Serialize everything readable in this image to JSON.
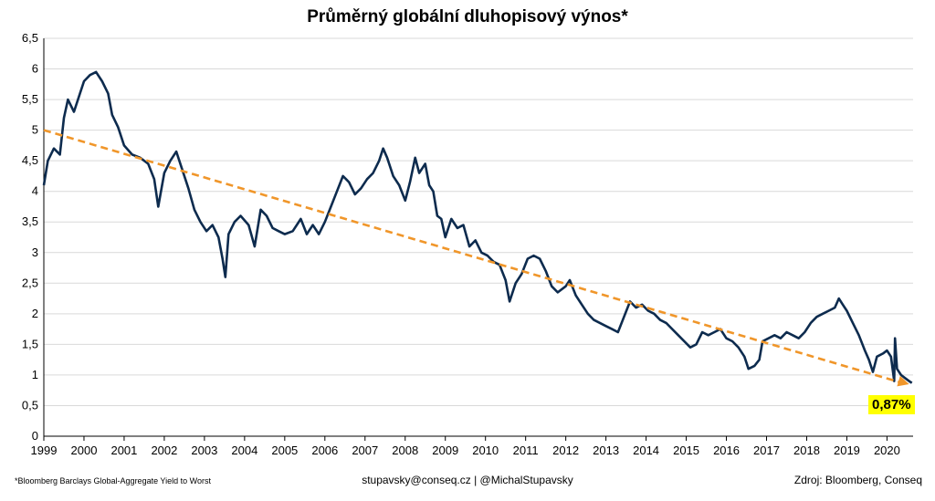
{
  "chart_data": {
    "type": "line",
    "title": "Průměrný globální dluhopisový výnos*",
    "x_ticks": [
      "1999",
      "2000",
      "2001",
      "2002",
      "2003",
      "2004",
      "2005",
      "2006",
      "2007",
      "2008",
      "2009",
      "2010",
      "2011",
      "2012",
      "2013",
      "2014",
      "2015",
      "2016",
      "2017",
      "2018",
      "2019",
      "2020"
    ],
    "y_ticks": [
      "0",
      "0,5",
      "1",
      "1,5",
      "2",
      "2,5",
      "3",
      "3,5",
      "4",
      "4,5",
      "5",
      "5,5",
      "6",
      "6,5"
    ],
    "xlim": [
      1999,
      2020.65
    ],
    "ylim": [
      0,
      6.5
    ],
    "grid": "horizontal",
    "series": [
      {
        "color": "#0d2b4e",
        "points": [
          [
            1999.0,
            4.1
          ],
          [
            1999.1,
            4.5
          ],
          [
            1999.25,
            4.7
          ],
          [
            1999.4,
            4.6
          ],
          [
            1999.5,
            5.2
          ],
          [
            1999.6,
            5.5
          ],
          [
            1999.75,
            5.3
          ],
          [
            1999.9,
            5.6
          ],
          [
            2000.0,
            5.8
          ],
          [
            2000.15,
            5.9
          ],
          [
            2000.3,
            5.95
          ],
          [
            2000.45,
            5.8
          ],
          [
            2000.6,
            5.6
          ],
          [
            2000.7,
            5.25
          ],
          [
            2000.85,
            5.05
          ],
          [
            2001.0,
            4.75
          ],
          [
            2001.2,
            4.6
          ],
          [
            2001.4,
            4.55
          ],
          [
            2001.6,
            4.45
          ],
          [
            2001.75,
            4.2
          ],
          [
            2001.85,
            3.75
          ],
          [
            2002.0,
            4.3
          ],
          [
            2002.15,
            4.5
          ],
          [
            2002.3,
            4.65
          ],
          [
            2002.45,
            4.35
          ],
          [
            2002.6,
            4.05
          ],
          [
            2002.75,
            3.7
          ],
          [
            2002.9,
            3.5
          ],
          [
            2003.05,
            3.35
          ],
          [
            2003.2,
            3.45
          ],
          [
            2003.35,
            3.25
          ],
          [
            2003.45,
            2.9
          ],
          [
            2003.52,
            2.6
          ],
          [
            2003.6,
            3.3
          ],
          [
            2003.75,
            3.5
          ],
          [
            2003.9,
            3.6
          ],
          [
            2004.1,
            3.45
          ],
          [
            2004.25,
            3.1
          ],
          [
            2004.4,
            3.7
          ],
          [
            2004.55,
            3.6
          ],
          [
            2004.7,
            3.4
          ],
          [
            2004.85,
            3.35
          ],
          [
            2005.0,
            3.3
          ],
          [
            2005.2,
            3.35
          ],
          [
            2005.4,
            3.55
          ],
          [
            2005.55,
            3.3
          ],
          [
            2005.7,
            3.45
          ],
          [
            2005.85,
            3.3
          ],
          [
            2006.0,
            3.5
          ],
          [
            2006.15,
            3.75
          ],
          [
            2006.3,
            4.0
          ],
          [
            2006.45,
            4.25
          ],
          [
            2006.6,
            4.15
          ],
          [
            2006.75,
            3.95
          ],
          [
            2006.9,
            4.05
          ],
          [
            2007.05,
            4.2
          ],
          [
            2007.2,
            4.3
          ],
          [
            2007.35,
            4.5
          ],
          [
            2007.45,
            4.7
          ],
          [
            2007.55,
            4.55
          ],
          [
            2007.7,
            4.25
          ],
          [
            2007.85,
            4.1
          ],
          [
            2008.0,
            3.85
          ],
          [
            2008.12,
            4.15
          ],
          [
            2008.25,
            4.55
          ],
          [
            2008.35,
            4.3
          ],
          [
            2008.5,
            4.45
          ],
          [
            2008.6,
            4.1
          ],
          [
            2008.7,
            4.0
          ],
          [
            2008.8,
            3.6
          ],
          [
            2008.9,
            3.55
          ],
          [
            2009.0,
            3.25
          ],
          [
            2009.15,
            3.55
          ],
          [
            2009.3,
            3.4
          ],
          [
            2009.45,
            3.45
          ],
          [
            2009.6,
            3.1
          ],
          [
            2009.75,
            3.2
          ],
          [
            2009.9,
            3.0
          ],
          [
            2010.05,
            2.95
          ],
          [
            2010.2,
            2.85
          ],
          [
            2010.35,
            2.8
          ],
          [
            2010.5,
            2.55
          ],
          [
            2010.6,
            2.2
          ],
          [
            2010.75,
            2.5
          ],
          [
            2010.9,
            2.65
          ],
          [
            2011.05,
            2.9
          ],
          [
            2011.2,
            2.95
          ],
          [
            2011.35,
            2.9
          ],
          [
            2011.5,
            2.7
          ],
          [
            2011.65,
            2.45
          ],
          [
            2011.8,
            2.35
          ],
          [
            2012.0,
            2.45
          ],
          [
            2012.1,
            2.55
          ],
          [
            2012.25,
            2.3
          ],
          [
            2012.4,
            2.15
          ],
          [
            2012.55,
            2.0
          ],
          [
            2012.7,
            1.9
          ],
          [
            2012.85,
            1.85
          ],
          [
            2013.0,
            1.8
          ],
          [
            2013.15,
            1.75
          ],
          [
            2013.3,
            1.7
          ],
          [
            2013.45,
            1.95
          ],
          [
            2013.6,
            2.2
          ],
          [
            2013.75,
            2.1
          ],
          [
            2013.9,
            2.15
          ],
          [
            2014.05,
            2.05
          ],
          [
            2014.2,
            2.0
          ],
          [
            2014.35,
            1.9
          ],
          [
            2014.5,
            1.85
          ],
          [
            2014.65,
            1.75
          ],
          [
            2014.8,
            1.65
          ],
          [
            2014.95,
            1.55
          ],
          [
            2015.1,
            1.45
          ],
          [
            2015.25,
            1.5
          ],
          [
            2015.4,
            1.7
          ],
          [
            2015.55,
            1.65
          ],
          [
            2015.7,
            1.7
          ],
          [
            2015.85,
            1.75
          ],
          [
            2016.0,
            1.6
          ],
          [
            2016.15,
            1.55
          ],
          [
            2016.3,
            1.45
          ],
          [
            2016.45,
            1.3
          ],
          [
            2016.55,
            1.1
          ],
          [
            2016.7,
            1.15
          ],
          [
            2016.82,
            1.25
          ],
          [
            2016.9,
            1.55
          ],
          [
            2017.05,
            1.6
          ],
          [
            2017.2,
            1.65
          ],
          [
            2017.35,
            1.6
          ],
          [
            2017.5,
            1.7
          ],
          [
            2017.65,
            1.65
          ],
          [
            2017.8,
            1.6
          ],
          [
            2017.95,
            1.7
          ],
          [
            2018.1,
            1.85
          ],
          [
            2018.25,
            1.95
          ],
          [
            2018.4,
            2.0
          ],
          [
            2018.55,
            2.05
          ],
          [
            2018.7,
            2.1
          ],
          [
            2018.8,
            2.25
          ],
          [
            2018.9,
            2.15
          ],
          [
            2019.0,
            2.05
          ],
          [
            2019.15,
            1.85
          ],
          [
            2019.3,
            1.65
          ],
          [
            2019.45,
            1.4
          ],
          [
            2019.55,
            1.25
          ],
          [
            2019.65,
            1.05
          ],
          [
            2019.75,
            1.3
          ],
          [
            2019.9,
            1.35
          ],
          [
            2020.0,
            1.4
          ],
          [
            2020.1,
            1.3
          ],
          [
            2020.18,
            0.9
          ],
          [
            2020.2,
            1.6
          ],
          [
            2020.25,
            1.1
          ],
          [
            2020.35,
            1.0
          ],
          [
            2020.45,
            0.95
          ],
          [
            2020.55,
            0.9
          ],
          [
            2020.62,
            0.87
          ]
        ]
      }
    ],
    "trendline": {
      "color": "#f0962a",
      "from": [
        1999.0,
        5.0
      ],
      "to": [
        2020.55,
        0.85
      ]
    },
    "last_value_label": "0,87%"
  },
  "footer": {
    "note": "*Bloomberg Barclays Global-Aggregate Yield to Worst",
    "contact": "stupavsky@conseq.cz  |  @MichalStupavsky",
    "source": "Zdroj: Bloomberg, Conseq"
  }
}
